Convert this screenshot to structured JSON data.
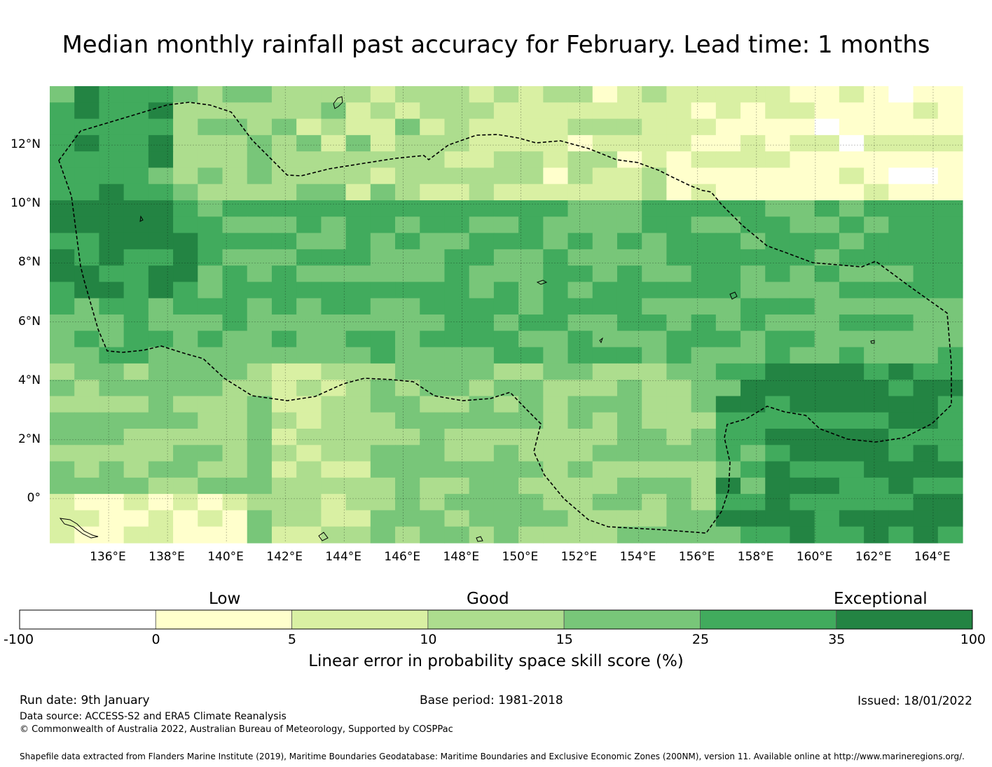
{
  "title": "Median monthly rainfall past accuracy for February. Lead time: 1 months",
  "map": {
    "lon_ticks": [
      "136°E",
      "138°E",
      "140°E",
      "142°E",
      "144°E",
      "146°E",
      "148°E",
      "150°E",
      "152°E",
      "154°E",
      "156°E",
      "158°E",
      "160°E",
      "162°E",
      "164°E"
    ],
    "lat_ticks": [
      "12°N",
      "10°N",
      "8°N",
      "6°N",
      "4°N",
      "2°N",
      "0°"
    ],
    "extent": {
      "lon_min": 134.0,
      "lon_max": 165.0,
      "lat_min": -1.5,
      "lat_max": 14.0
    }
  },
  "legend": {
    "categories": [
      "Low",
      "Good",
      "Exceptional"
    ],
    "bounds": [
      "-100",
      "0",
      "5",
      "10",
      "15",
      "25",
      "35",
      "100"
    ],
    "colors": [
      "#ffffff",
      "#ffffcc",
      "#d9f0a3",
      "#addd8e",
      "#78c679",
      "#41ab5d",
      "#238443"
    ],
    "title": "Linear error in probability space skill score (%)"
  },
  "footer": {
    "run_date": "Run date: 9th January",
    "base_period": "Base period: 1981-2018",
    "issued": "Issued: 18/01/2022",
    "data_source": "Data source: ACCESS-S2 and ERA5 Climate Reanalysis",
    "copyright": "© Commonwealth of Australia 2022, Australian Bureau of Meteorology, Supported by COSPPac",
    "shapefile": "Shapefile data extracted from Flanders Marine Institute (2019), Maritime Boundaries Geodatabase: Maritime Boundaries and Exclusive Economic Zones (200NM), version 11. Available online at http://www.marineregions.org/."
  }
}
